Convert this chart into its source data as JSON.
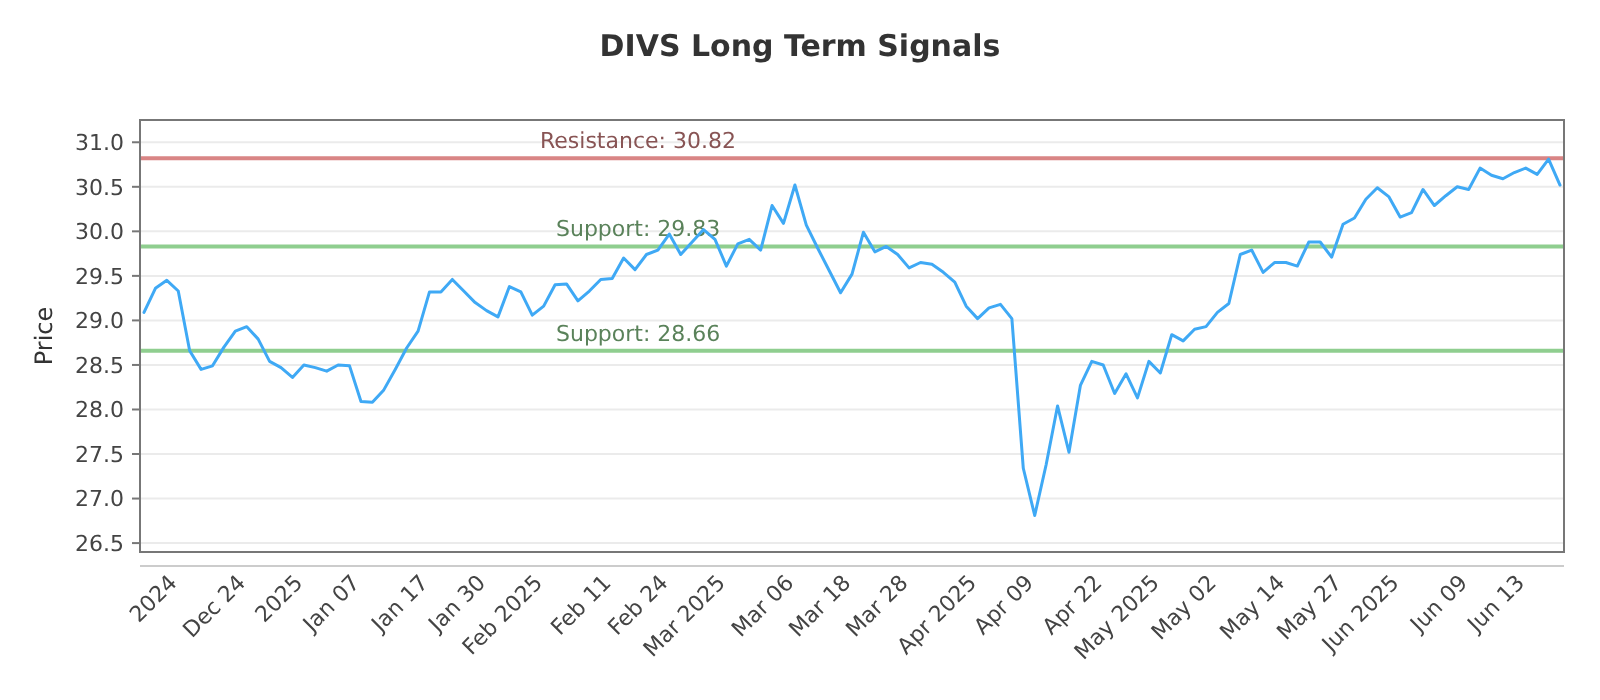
{
  "chart_data": {
    "type": "line",
    "title": "DIVS Long Term Signals",
    "ylabel": "Price",
    "categories": [
      null,
      null,
      null,
      "2024",
      null,
      null,
      null,
      null,
      null,
      "Dec 24",
      null,
      null,
      null,
      null,
      "2025",
      null,
      null,
      null,
      null,
      "Jan 07",
      null,
      null,
      null,
      null,
      null,
      "Jan 17",
      null,
      null,
      null,
      null,
      "Jan 30",
      null,
      null,
      null,
      null,
      "Feb 2025",
      null,
      null,
      null,
      null,
      null,
      "Feb 11",
      null,
      null,
      null,
      null,
      "Feb 24",
      null,
      null,
      null,
      null,
      "Mar 2025",
      null,
      null,
      null,
      null,
      null,
      "Mar 06",
      null,
      null,
      null,
      null,
      "Mar 18",
      null,
      null,
      null,
      null,
      "Mar 28",
      null,
      null,
      null,
      null,
      null,
      "Apr 2025",
      null,
      null,
      null,
      null,
      "Apr 09",
      null,
      null,
      null,
      null,
      null,
      "Apr 22",
      null,
      null,
      null,
      null,
      "May 2025",
      null,
      null,
      null,
      null,
      "May 02",
      null,
      null,
      null,
      null,
      null,
      "May 14",
      null,
      null,
      null,
      null,
      "May 27",
      null,
      null,
      null,
      null,
      "Jun 2025",
      null,
      null,
      null,
      null,
      null,
      "Jun 09",
      null,
      null,
      null,
      null,
      "Jun 13",
      null,
      null,
      null
    ],
    "series": [
      {
        "color": "#3fa9f5",
        "values": [
          29.09,
          29.36,
          29.45,
          29.33,
          28.66,
          28.45,
          28.49,
          28.7,
          28.88,
          28.93,
          28.79,
          28.54,
          28.47,
          28.36,
          28.5,
          28.47,
          28.43,
          28.5,
          28.49,
          28.09,
          28.08,
          28.22,
          28.45,
          28.69,
          28.88,
          29.32,
          29.32,
          29.46,
          29.33,
          29.2,
          29.11,
          29.04,
          29.38,
          29.32,
          29.06,
          29.16,
          29.4,
          29.41,
          29.22,
          29.33,
          29.46,
          29.47,
          29.7,
          29.57,
          29.74,
          29.79,
          29.97,
          29.74,
          29.88,
          30.02,
          29.91,
          29.61,
          29.86,
          29.91,
          29.79,
          30.29,
          30.09,
          30.52,
          30.07,
          29.81,
          29.56,
          29.31,
          29.52,
          29.99,
          29.77,
          29.83,
          29.74,
          29.59,
          29.65,
          29.63,
          29.54,
          29.43,
          29.16,
          29.02,
          29.14,
          29.18,
          29.02,
          27.34,
          26.81,
          27.38,
          28.04,
          27.52,
          28.27,
          28.54,
          28.5,
          28.18,
          28.4,
          28.13,
          28.54,
          28.41,
          28.84,
          28.77,
          28.9,
          28.93,
          29.09,
          29.19,
          29.74,
          29.79,
          29.54,
          29.65,
          29.65,
          29.61,
          29.88,
          29.88,
          29.71,
          30.08,
          30.15,
          30.36,
          30.49,
          30.39,
          30.16,
          30.21,
          30.47,
          30.29,
          30.4,
          30.5,
          30.47,
          30.71,
          30.63,
          30.59,
          30.66,
          30.71,
          30.64,
          30.81,
          30.52
        ]
      }
    ],
    "ylim": [
      26.4,
      31.25
    ],
    "yticks": [
      {
        "value": 26.5,
        "label": "26.5"
      },
      {
        "value": 27,
        "label": "27.0"
      },
      {
        "value": 27.5,
        "label": "27.5"
      },
      {
        "value": 28,
        "label": "28.0"
      },
      {
        "value": 28.5,
        "label": "28.5"
      },
      {
        "value": 29,
        "label": "29.0"
      },
      {
        "value": 29.5,
        "label": "29.5"
      },
      {
        "value": 30,
        "label": "30.0"
      },
      {
        "value": 30.5,
        "label": "30.5"
      },
      {
        "value": 31,
        "label": "31.0"
      }
    ],
    "grid": "y",
    "line_style": "solid",
    "marker": "none",
    "ref_lines": [
      {
        "axis": "y",
        "value": 30.82,
        "label": "Resistance: 30.82",
        "color": "#d98585"
      },
      {
        "axis": "y",
        "value": 29.83,
        "label": "Support: 29.83",
        "color": "#8fce8f"
      },
      {
        "axis": "y",
        "value": 28.66,
        "label": "Support: 28.66",
        "color": "#8fce8f"
      }
    ]
  }
}
